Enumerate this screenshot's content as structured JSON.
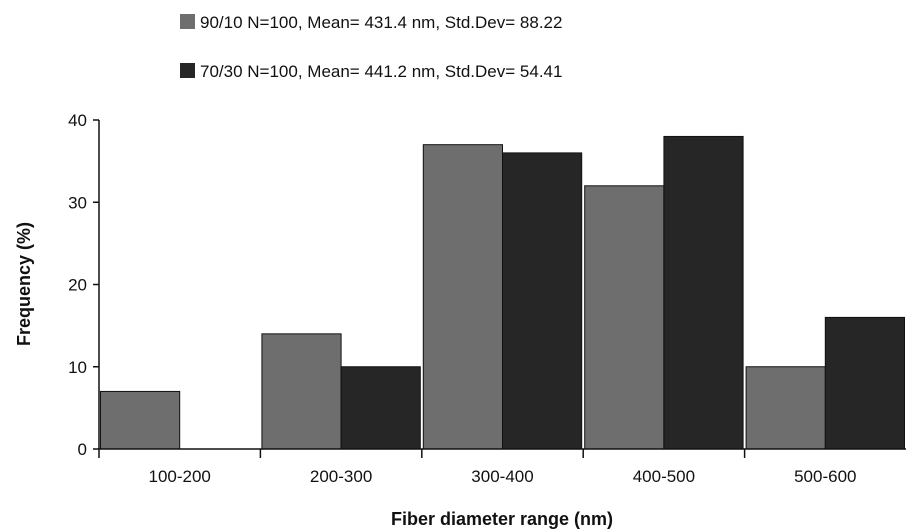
{
  "chart_data": {
    "type": "bar",
    "categories": [
      "100-200",
      "200-300",
      "300-400",
      "400-500",
      "500-600"
    ],
    "series": [
      {
        "name": "90/10 N=100, Mean= 431.4 nm, Std.Dev= 88.22",
        "values": [
          7,
          14,
          37,
          32,
          10
        ],
        "color": "#6e6e6e"
      },
      {
        "name": "70/30 N=100, Mean= 441.2 nm, Std.Dev= 54.41",
        "values": [
          0,
          10,
          36,
          38,
          16
        ],
        "color": "#262626"
      }
    ],
    "xlabel": "Fiber diameter range (nm)",
    "ylabel": "Frequency (%)",
    "ylim": [
      0,
      40
    ],
    "yticks": [
      "0",
      "10",
      "20",
      "30",
      "40"
    ],
    "grid": false,
    "legend": "top"
  }
}
